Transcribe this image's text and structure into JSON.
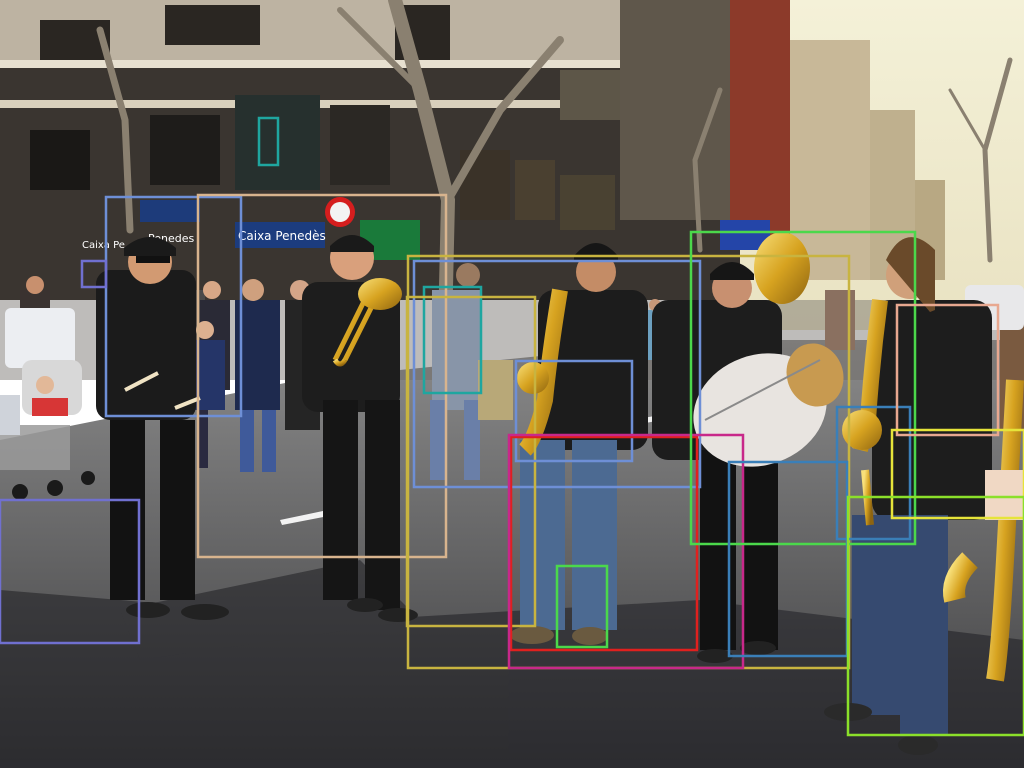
{
  "image": {
    "description_tags": [
      "street",
      "marching-band",
      "musicians",
      "saxophone",
      "trombone",
      "drum",
      "cymbal",
      "pedestrians",
      "buildings"
    ]
  },
  "storefront_signs": [
    {
      "text": "Caixa Penedès"
    },
    {
      "text": "Penedes"
    },
    {
      "text": "Caixa Pe"
    }
  ],
  "annotation_colors": {
    "blue": "#6e8fd6",
    "tan": "#d8b48e",
    "teal": "#1fa6a0",
    "olive": "#c8b440",
    "red": "#e0201e",
    "magenta": "#c8288a",
    "green": "#4bd84b",
    "lime": "#8be02a",
    "yellow": "#e6e43a",
    "steel": "#3a7fb8",
    "lavender": "#7070d0",
    "salmon": "#e8a890"
  }
}
